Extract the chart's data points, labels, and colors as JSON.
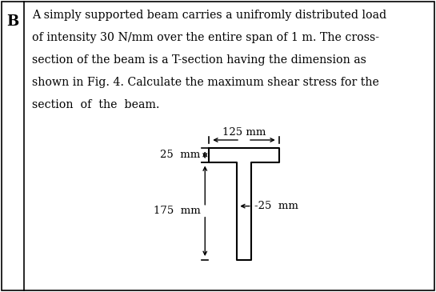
{
  "text_lines": [
    "A simply supported beam carries a unifromly distributed load",
    "of intensity 30 N/mm over the entire span of 1 m. The cross-",
    "section of the beam is a T-section having the dimension as",
    "shown in Fig. 4. Calculate the maximum shear stress for the",
    "section  of  the  beam."
  ],
  "label_B": "B",
  "bg_color": "#ffffff",
  "text_color": "#000000",
  "border_color": "#000000",
  "diagram": {
    "annotation_125mm": "125 mm",
    "annotation_25mm_top": "25  mm",
    "annotation_175mm": "175  mm",
    "annotation_25mm_web": "-25  mm"
  }
}
